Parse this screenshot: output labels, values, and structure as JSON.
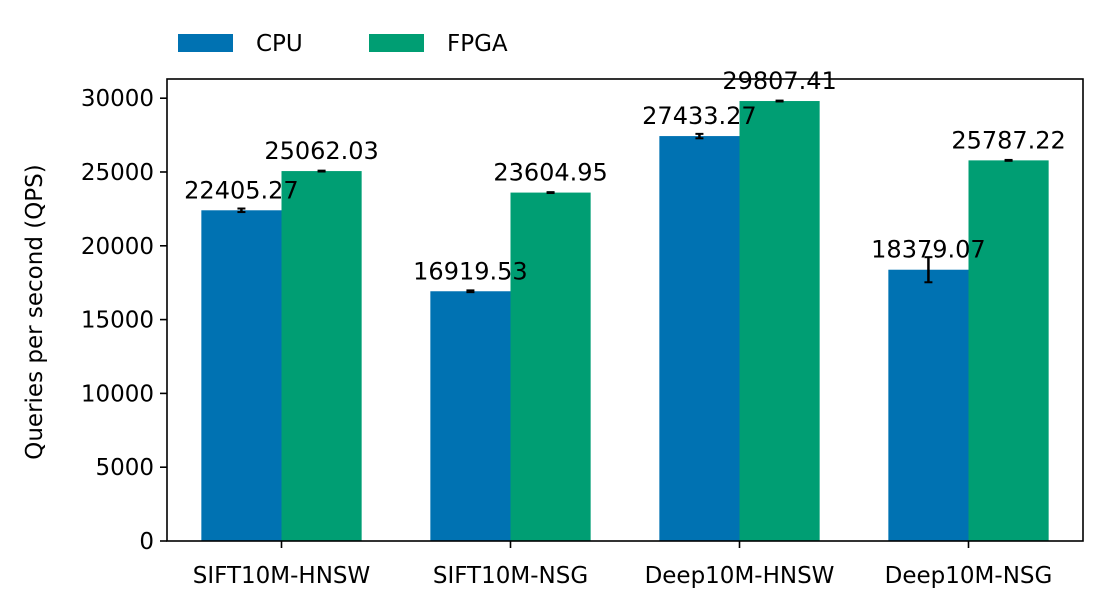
{
  "chart_data": {
    "type": "bar",
    "title": "",
    "xlabel": "",
    "ylabel": "Queries per second (QPS)",
    "categories": [
      "SIFT10M-HNSW",
      "SIFT10M-NSG",
      "Deep10M-HNSW",
      "Deep10M-NSG"
    ],
    "series": [
      {
        "name": "CPU",
        "color": "#0072B2",
        "values": [
          22405.27,
          16919.53,
          27433.27,
          18379.07
        ],
        "labels": [
          "22405.27",
          "16919.53",
          "27433.27",
          "18379.07"
        ],
        "errors": [
          120,
          60,
          150,
          850
        ]
      },
      {
        "name": "FPGA",
        "color": "#009E73",
        "values": [
          25062.03,
          23604.95,
          29807.41,
          25787.22
        ],
        "labels": [
          "25062.03",
          "23604.95",
          "29807.41",
          "25787.22"
        ],
        "errors": [
          30,
          30,
          30,
          30
        ]
      }
    ],
    "ylim": [
      0,
      31300
    ],
    "yticks": [
      0,
      5000,
      10000,
      15000,
      20000,
      25000,
      30000
    ],
    "ytick_labels": [
      "0",
      "5000",
      "10000",
      "15000",
      "20000",
      "25000",
      "30000"
    ],
    "grid": false,
    "legend_position": "top-left"
  }
}
